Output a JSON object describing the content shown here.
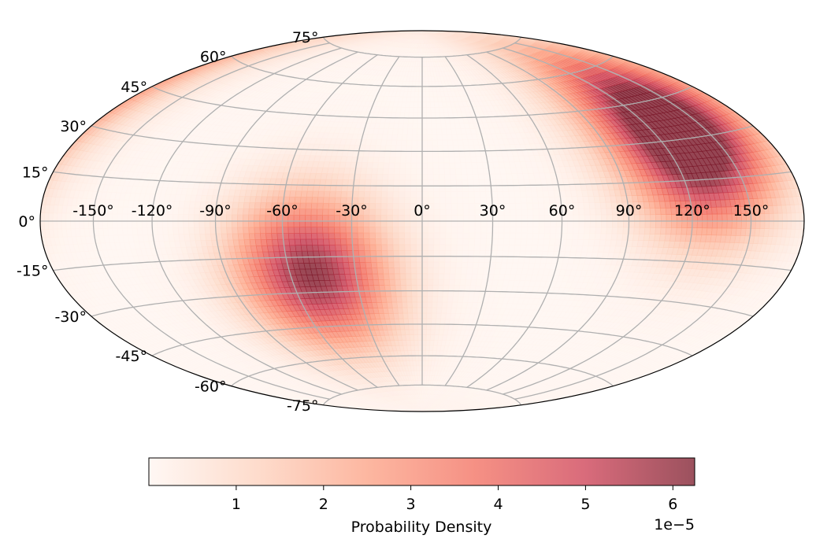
{
  "chart_data": {
    "type": "heatmap",
    "projection": "hammer",
    "title": "",
    "grid": true,
    "longitude_tick_labels": [
      "-150°",
      "-120°",
      "-90°",
      "-60°",
      "-30°",
      "0°",
      "30°",
      "60°",
      "90°",
      "120°",
      "150°"
    ],
    "longitude_ticks": [
      -150,
      -120,
      -90,
      -60,
      -30,
      0,
      30,
      60,
      90,
      120,
      150
    ],
    "latitude_tick_labels": [
      "75°",
      "60°",
      "45°",
      "30°",
      "15°",
      "0°",
      "-15°",
      "-30°",
      "-45°",
      "-60°",
      "-75°"
    ],
    "latitude_ticks": [
      75,
      60,
      45,
      30,
      15,
      0,
      -15,
      -30,
      -45,
      -60,
      -75
    ],
    "density_peaks": [
      {
        "lon": -50,
        "lat": -22,
        "value": 6.2e-05
      },
      {
        "lon": 125,
        "lat": 28,
        "value": 6e-05
      },
      {
        "lon": 150,
        "lat": 40,
        "value": 3.5e-05
      }
    ],
    "colorbar": {
      "label": "Probability Density",
      "tick_labels": [
        "1",
        "2",
        "3",
        "4",
        "5",
        "6"
      ],
      "ticks": [
        1,
        2,
        3,
        4,
        5,
        6
      ],
      "range": [
        0,
        6.25
      ],
      "offset_text": "1e−5",
      "colors": [
        "#fff5f0",
        "#fdd0bb",
        "#fc9f81",
        "#f26b5b",
        "#cc3a4f",
        "#7a1728"
      ],
      "alpha": 0.75
    }
  }
}
